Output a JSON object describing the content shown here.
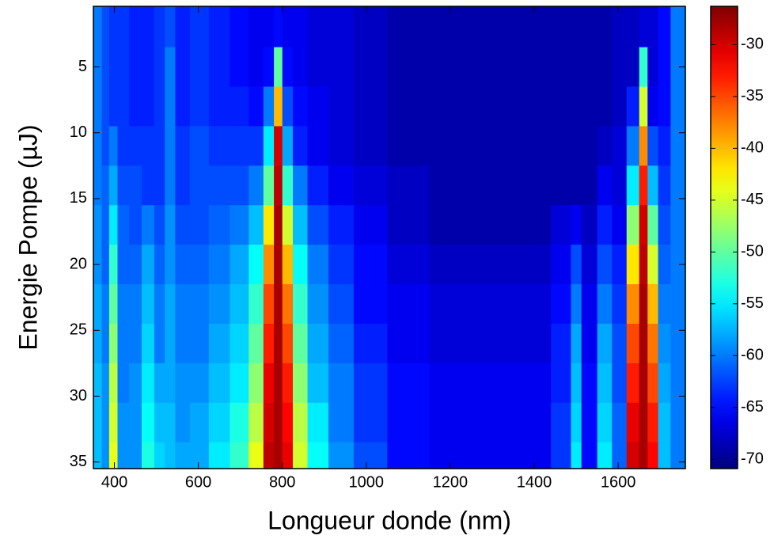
{
  "chart_data": {
    "type": "heatmap",
    "xlabel": "Longueur donde (nm)",
    "ylabel": "Energie Pompe (µJ)",
    "colormap": "jet",
    "x": [
      360,
      380,
      395,
      420,
      450,
      480,
      510,
      530,
      560,
      600,
      650,
      700,
      740,
      770,
      790,
      810,
      840,
      880,
      940,
      1000,
      1100,
      1200,
      1300,
      1400,
      1480,
      1495,
      1530,
      1570,
      1600,
      1640,
      1660,
      1680,
      1710,
      1740
    ],
    "y": [
      2,
      5,
      8,
      11,
      14,
      17,
      20,
      23,
      26,
      29,
      32,
      35
    ],
    "z": [
      [
        -60,
        -62,
        -63,
        -63,
        -64,
        -64,
        -63,
        -62,
        -64,
        -63,
        -64,
        -65,
        -66,
        -66,
        -65,
        -66,
        -66,
        -67,
        -67,
        -68,
        -69,
        -69,
        -69,
        -69,
        -69,
        -69,
        -69,
        -69,
        -68,
        -68,
        -67,
        -67,
        -65,
        -60
      ],
      [
        -60,
        -62,
        -63,
        -63,
        -64,
        -64,
        -63,
        -60,
        -64,
        -63,
        -64,
        -65,
        -66,
        -65,
        -50,
        -65,
        -66,
        -67,
        -67,
        -68,
        -69,
        -69,
        -69,
        -69,
        -69,
        -69,
        -69,
        -69,
        -68,
        -68,
        -52,
        -67,
        -65,
        -60
      ],
      [
        -60,
        -62,
        -63,
        -63,
        -64,
        -64,
        -63,
        -60,
        -64,
        -63,
        -64,
        -64,
        -65,
        -60,
        -40,
        -62,
        -65,
        -66,
        -67,
        -68,
        -69,
        -69,
        -69,
        -69,
        -69,
        -69,
        -69,
        -69,
        -68,
        -64,
        -45,
        -66,
        -65,
        -60
      ],
      [
        -60,
        -62,
        -60,
        -63,
        -63,
        -63,
        -63,
        -60,
        -63,
        -62,
        -63,
        -63,
        -63,
        -55,
        -30,
        -58,
        -64,
        -66,
        -67,
        -68,
        -69,
        -69,
        -69,
        -69,
        -69,
        -69,
        -69,
        -68,
        -67,
        -60,
        -38,
        -62,
        -64,
        -60
      ],
      [
        -60,
        -61,
        -58,
        -62,
        -62,
        -63,
        -63,
        -60,
        -63,
        -62,
        -62,
        -62,
        -60,
        -50,
        -29,
        -52,
        -60,
        -64,
        -66,
        -67,
        -68,
        -69,
        -69,
        -69,
        -69,
        -69,
        -69,
        -66,
        -67,
        -55,
        -33,
        -57,
        -63,
        -60
      ],
      [
        -59,
        -61,
        -55,
        -61,
        -62,
        -60,
        -62,
        -59,
        -62,
        -62,
        -61,
        -60,
        -57,
        -42,
        -28,
        -45,
        -57,
        -62,
        -64,
        -66,
        -68,
        -69,
        -69,
        -69,
        -67,
        -66,
        -68,
        -64,
        -66,
        -48,
        -30,
        -50,
        -62,
        -60
      ],
      [
        -59,
        -61,
        -52,
        -61,
        -61,
        -58,
        -61,
        -59,
        -61,
        -61,
        -60,
        -58,
        -54,
        -38,
        -28,
        -40,
        -54,
        -60,
        -63,
        -65,
        -67,
        -68,
        -68,
        -68,
        -66,
        -62,
        -67,
        -62,
        -64,
        -42,
        -29,
        -45,
        -61,
        -60
      ],
      [
        -58,
        -60,
        -50,
        -60,
        -60,
        -57,
        -60,
        -58,
        -60,
        -60,
        -59,
        -57,
        -52,
        -35,
        -28,
        -37,
        -52,
        -59,
        -62,
        -65,
        -66,
        -67,
        -67,
        -67,
        -65,
        -60,
        -66,
        -60,
        -63,
        -38,
        -28,
        -40,
        -60,
        -60
      ],
      [
        -58,
        -60,
        -48,
        -60,
        -60,
        -56,
        -60,
        -58,
        -60,
        -60,
        -58,
        -56,
        -50,
        -33,
        -28,
        -35,
        -50,
        -58,
        -61,
        -64,
        -66,
        -67,
        -67,
        -67,
        -64,
        -58,
        -66,
        -58,
        -62,
        -35,
        -28,
        -37,
        -59,
        -60
      ],
      [
        -57,
        -59,
        -46,
        -60,
        -59,
        -55,
        -58,
        -58,
        -59,
        -59,
        -57,
        -55,
        -48,
        -31,
        -28,
        -33,
        -48,
        -57,
        -60,
        -63,
        -65,
        -66,
        -66,
        -66,
        -64,
        -57,
        -65,
        -57,
        -62,
        -33,
        -28,
        -35,
        -58,
        -60
      ],
      [
        -57,
        -59,
        -45,
        -59,
        -59,
        -54,
        -57,
        -57,
        -59,
        -58,
        -56,
        -53,
        -46,
        -30,
        -28,
        -32,
        -46,
        -55,
        -60,
        -63,
        -65,
        -66,
        -66,
        -66,
        -63,
        -56,
        -65,
        -56,
        -61,
        -31,
        -28,
        -33,
        -57,
        -60
      ],
      [
        -57,
        -59,
        -44,
        -59,
        -59,
        -53,
        -56,
        -57,
        -58,
        -58,
        -55,
        -52,
        -44,
        -29,
        -28,
        -31,
        -45,
        -54,
        -59,
        -62,
        -65,
        -66,
        -66,
        -66,
        -63,
        -55,
        -65,
        -55,
        -61,
        -30,
        -28,
        -32,
        -57,
        -60
      ]
    ],
    "xlim": [
      350,
      1760
    ],
    "xticks": [
      400,
      600,
      800,
      1000,
      1200,
      1400,
      1600
    ],
    "ylim": [
      0.4,
      35.5
    ],
    "yticks": [
      5,
      10,
      15,
      20,
      25,
      30,
      35
    ],
    "y_inverted": true,
    "clim": [
      -70.9,
      -26.3
    ],
    "cticks": [
      -30,
      -35,
      -40,
      -45,
      -50,
      -55,
      -60,
      -65,
      -70
    ]
  }
}
